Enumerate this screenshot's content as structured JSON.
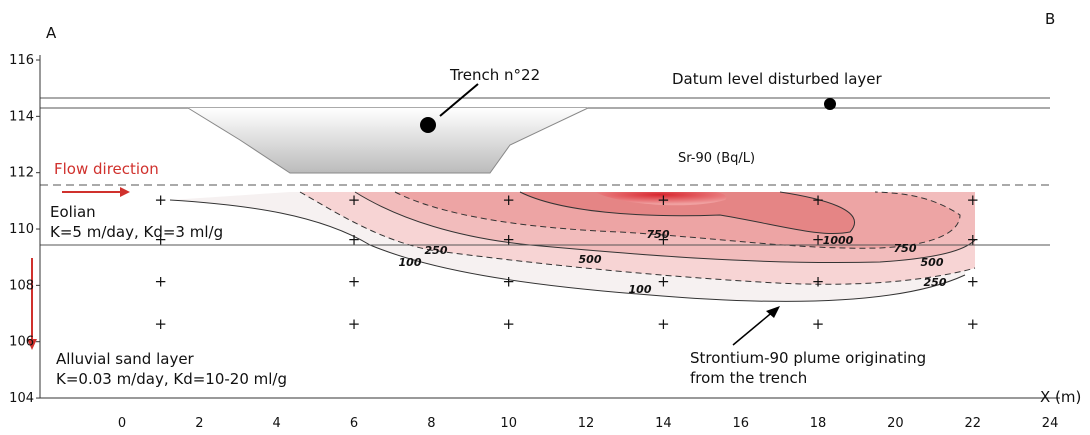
{
  "corner_left": "A",
  "corner_right": "B",
  "trench_label": "Trench n°22",
  "datum_label": "Datum level disturbed layer",
  "units_label": "Sr-90 (Bq/L)",
  "flow_label": "Flow direction",
  "eolian": {
    "name": "Eolian",
    "params": "K=5 m/day, Kd=3 ml/g"
  },
  "alluvial": {
    "name": "Alluvial sand layer",
    "params": "K=0.03 m/day, Kd=10-20 ml/g"
  },
  "plume_note": [
    "Strontium-90 plume originating",
    "from the trench"
  ],
  "x_axis": {
    "label": "X (m)",
    "ticks": [
      0,
      2,
      4,
      6,
      8,
      10,
      12,
      14,
      16,
      18,
      20,
      22,
      24
    ]
  },
  "y_axis": {
    "ticks": [
      104,
      106,
      108,
      110,
      112,
      114,
      116
    ]
  },
  "contour_labels": [
    100,
    250,
    500,
    750,
    1000,
    750,
    500,
    250,
    100
  ]
}
